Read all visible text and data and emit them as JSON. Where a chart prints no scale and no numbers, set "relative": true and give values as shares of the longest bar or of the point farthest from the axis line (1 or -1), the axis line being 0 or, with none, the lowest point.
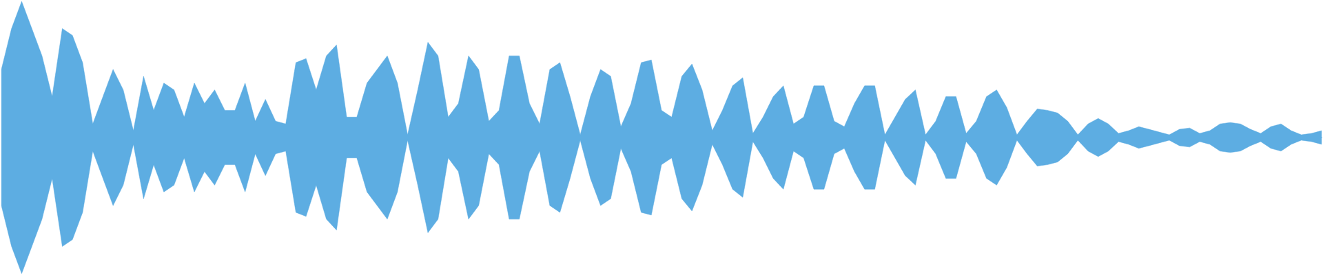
{
  "chart_data": {
    "type": "area",
    "relative": true,
    "legend": false,
    "marker": "none",
    "categories": [
      null,
      null,
      null,
      null,
      null,
      null,
      null,
      null,
      null,
      null,
      null,
      null,
      null,
      null,
      null,
      null,
      null,
      null,
      null,
      null,
      null,
      null,
      null,
      null,
      null,
      null,
      null,
      null,
      null,
      null,
      null,
      null,
      null,
      null,
      null,
      null,
      null,
      null,
      null,
      null,
      null,
      null,
      null,
      null,
      null,
      null,
      null,
      null,
      null,
      null,
      null,
      null,
      null,
      null,
      null,
      null,
      null,
      null,
      null,
      null,
      null,
      null,
      null,
      null,
      null,
      null,
      null,
      null,
      null,
      null,
      null,
      null,
      null,
      null,
      null,
      null,
      null,
      null,
      null,
      null,
      null,
      null,
      null,
      null,
      null,
      null,
      null,
      null,
      null,
      null,
      null,
      null,
      null,
      null,
      null,
      null,
      null,
      null,
      null,
      null,
      null,
      null,
      null,
      null,
      null,
      null,
      null,
      null,
      null,
      null,
      null,
      null,
      null,
      null,
      null,
      null,
      null,
      null,
      null,
      null,
      null,
      null,
      null,
      null,
      null,
      null,
      null,
      null,
      null,
      null,
      null
    ],
    "series": [
      {
        "color": "#5dade2",
        "values": [
          0.5,
          0.8,
          1,
          0.8,
          0.6,
          0.3,
          0.8,
          0.75,
          0.55,
          0.1,
          0.3,
          0.5,
          0.35,
          0.05,
          0.45,
          0.2,
          0.4,
          0.35,
          0.15,
          0.4,
          0.25,
          0.35,
          0.2,
          0.2,
          0.4,
          0.12,
          0.28,
          0.12,
          0.1,
          0.55,
          0.58,
          0.35,
          0.6,
          0.68,
          0.15,
          0.15,
          0.4,
          0.5,
          0.6,
          0.4,
          0.02,
          0.35,
          0.7,
          0.6,
          0.15,
          0.25,
          0.6,
          0.5,
          0.12,
          0.2,
          0.6,
          0.6,
          0.25,
          0.1,
          0.5,
          0.55,
          0.3,
          0.02,
          0.3,
          0.5,
          0.45,
          0.08,
          0.25,
          0.55,
          0.57,
          0.2,
          0.15,
          0.45,
          0.54,
          0.35,
          0.05,
          0.2,
          0.38,
          0.44,
          0.03,
          0.15,
          0.3,
          0.38,
          0.1,
          0.15,
          0.38,
          0.38,
          0.12,
          0.08,
          0.25,
          0.38,
          0.38,
          0.02,
          0.15,
          0.28,
          0.35,
          0.02,
          0.12,
          0.3,
          0.3,
          0.03,
          0.12,
          0.3,
          0.35,
          0.22,
          0.02,
          0.12,
          0.21,
          0.2,
          0.18,
          0.12,
          0.02,
          0.1,
          0.14,
          0.1,
          0.03,
          0.05,
          0.08,
          0.06,
          0.04,
          0.02,
          0.06,
          0.07,
          0.03,
          0.05,
          0.1,
          0.11,
          0.1,
          0.06,
          0.03,
          0.08,
          0.1,
          0.05,
          0.02,
          0.03,
          0.05
        ]
      },
      {
        "color": "#5dade2",
        "values": [
          -0.5,
          -0.8,
          -1,
          -0.8,
          -0.6,
          -0.3,
          -0.8,
          -0.75,
          -0.55,
          -0.1,
          -0.3,
          -0.5,
          -0.35,
          -0.05,
          -0.45,
          -0.2,
          -0.4,
          -0.35,
          -0.15,
          -0.4,
          -0.25,
          -0.35,
          -0.2,
          -0.2,
          -0.4,
          -0.12,
          -0.28,
          -0.12,
          -0.1,
          -0.55,
          -0.58,
          -0.35,
          -0.6,
          -0.68,
          -0.15,
          -0.15,
          -0.4,
          -0.5,
          -0.6,
          -0.4,
          -0.02,
          -0.35,
          -0.7,
          -0.6,
          -0.15,
          -0.25,
          -0.6,
          -0.5,
          -0.12,
          -0.2,
          -0.6,
          -0.6,
          -0.25,
          -0.1,
          -0.5,
          -0.55,
          -0.3,
          -0.02,
          -0.3,
          -0.5,
          -0.45,
          -0.08,
          -0.25,
          -0.55,
          -0.57,
          -0.2,
          -0.15,
          -0.45,
          -0.54,
          -0.35,
          -0.05,
          -0.2,
          -0.38,
          -0.44,
          -0.03,
          -0.15,
          -0.3,
          -0.38,
          -0.1,
          -0.15,
          -0.38,
          -0.38,
          -0.12,
          -0.08,
          -0.25,
          -0.38,
          -0.38,
          -0.02,
          -0.15,
          -0.28,
          -0.35,
          -0.02,
          -0.12,
          -0.3,
          -0.3,
          -0.03,
          -0.12,
          -0.3,
          -0.35,
          -0.22,
          -0.02,
          -0.12,
          -0.21,
          -0.2,
          -0.18,
          -0.12,
          -0.02,
          -0.1,
          -0.14,
          -0.1,
          -0.03,
          -0.05,
          -0.08,
          -0.06,
          -0.04,
          -0.02,
          -0.06,
          -0.07,
          -0.03,
          -0.05,
          -0.1,
          -0.11,
          -0.1,
          -0.06,
          -0.03,
          -0.08,
          -0.1,
          -0.05,
          -0.02,
          -0.03,
          -0.05
        ]
      }
    ]
  }
}
